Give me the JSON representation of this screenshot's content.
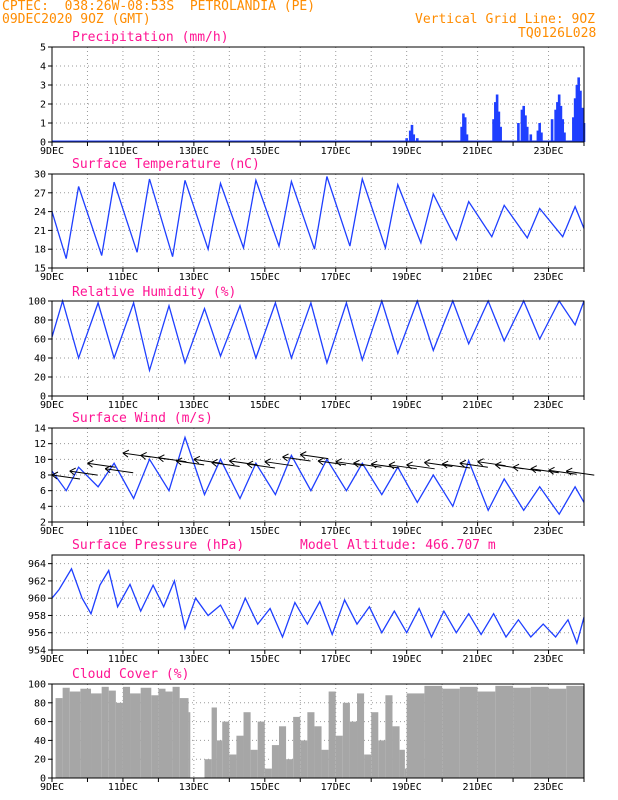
{
  "header": {
    "line1": "CPTEC:  038:26W-08:53S  PETROLANDIA (PE)",
    "line2": "09DEC2020 9OZ (GMT)",
    "right1": "Vertical Grid Line: 9OZ",
    "right2": "TQ0126L028"
  },
  "colors": {
    "header": "#ff8c00",
    "title": "#ff1493",
    "series": "#1f3fff",
    "cloud": "#a6a6a6",
    "grid": "#9a9a9a"
  },
  "x_labels": [
    "9DEC",
    "11DEC",
    "13DEC",
    "15DEC",
    "17DEC",
    "19DEC",
    "21DEC",
    "23DEC"
  ],
  "chart_data": [
    {
      "type": "bar",
      "title": "Precipitation (mm/h)",
      "x_labels": [
        "9DEC",
        "11DEC",
        "13DEC",
        "15DEC",
        "17DEC",
        "19DEC",
        "21DEC",
        "23DEC"
      ],
      "xlim": [
        9,
        24
      ],
      "ylim": [
        0,
        5
      ],
      "yticks": [
        0,
        1,
        2,
        3,
        4,
        5
      ],
      "x": [
        19.0,
        19.1,
        19.15,
        19.2,
        19.3,
        20.55,
        20.6,
        20.65,
        20.7,
        21.45,
        21.5,
        21.55,
        21.6,
        21.65,
        22.15,
        22.25,
        22.3,
        22.35,
        22.4,
        22.5,
        22.7,
        22.75,
        22.8,
        23.1,
        23.2,
        23.25,
        23.3,
        23.35,
        23.4,
        23.45,
        23.7,
        23.75,
        23.8,
        23.85,
        23.9,
        23.95,
        24.0
      ],
      "values": [
        0.2,
        0.6,
        0.9,
        0.4,
        0.2,
        0.8,
        1.5,
        1.3,
        0.4,
        1.2,
        2.1,
        2.5,
        1.6,
        0.8,
        1.0,
        1.7,
        1.9,
        1.4,
        0.8,
        0.4,
        0.6,
        1.0,
        0.5,
        1.2,
        1.7,
        2.1,
        2.5,
        1.9,
        1.2,
        0.5,
        1.3,
        2.3,
        3.0,
        3.4,
        2.7,
        1.8,
        1.0
      ],
      "grid": true
    },
    {
      "type": "line",
      "title": "Surface Temperature (nC)",
      "x_labels": [
        "9DEC",
        "11DEC",
        "13DEC",
        "15DEC",
        "17DEC",
        "19DEC",
        "21DEC",
        "23DEC"
      ],
      "xlim": [
        9,
        24
      ],
      "ylim": [
        15,
        30
      ],
      "yticks": [
        15,
        18,
        21,
        24,
        27,
        30
      ],
      "x": [
        9.0,
        9.4,
        9.75,
        10.4,
        10.75,
        11.4,
        11.75,
        12.4,
        12.75,
        13.4,
        13.75,
        14.4,
        14.75,
        15.4,
        15.75,
        16.4,
        16.75,
        17.4,
        17.75,
        18.4,
        18.75,
        19.4,
        19.75,
        20.4,
        20.75,
        21.4,
        21.75,
        22.4,
        22.75,
        23.4,
        23.75,
        24.0
      ],
      "values": [
        24.0,
        16.5,
        28.0,
        17.0,
        28.7,
        17.5,
        29.2,
        16.8,
        29.0,
        18.0,
        28.5,
        18.2,
        29.0,
        18.5,
        28.8,
        18.0,
        29.6,
        18.5,
        29.2,
        18.2,
        28.3,
        19.0,
        26.8,
        19.5,
        25.6,
        20.0,
        25.0,
        19.8,
        24.5,
        20.0,
        24.8,
        21.3
      ],
      "grid": true
    },
    {
      "type": "line",
      "title": "Relative Humidity (%)",
      "x_labels": [
        "9DEC",
        "11DEC",
        "13DEC",
        "15DEC",
        "17DEC",
        "19DEC",
        "21DEC",
        "23DEC"
      ],
      "xlim": [
        9,
        24
      ],
      "ylim": [
        0,
        100
      ],
      "yticks": [
        0,
        20,
        40,
        60,
        80,
        100
      ],
      "x": [
        9.0,
        9.3,
        9.75,
        10.3,
        10.75,
        11.3,
        11.75,
        12.3,
        12.75,
        13.3,
        13.75,
        14.3,
        14.75,
        15.3,
        15.75,
        16.3,
        16.75,
        17.3,
        17.75,
        18.3,
        18.75,
        19.3,
        19.75,
        20.3,
        20.75,
        21.3,
        21.75,
        22.3,
        22.75,
        23.3,
        23.75,
        24.0
      ],
      "values": [
        62,
        100,
        40,
        98,
        40,
        98,
        27,
        95,
        35,
        92,
        42,
        95,
        40,
        98,
        40,
        98,
        35,
        98,
        38,
        100,
        45,
        100,
        48,
        100,
        55,
        100,
        58,
        100,
        60,
        100,
        75,
        100
      ],
      "grid": true
    },
    {
      "type": "line",
      "title": "Surface Wind (m/s)",
      "x_labels": [
        "9DEC",
        "11DEC",
        "13DEC",
        "15DEC",
        "17DEC",
        "19DEC",
        "21DEC",
        "23DEC"
      ],
      "xlim": [
        9,
        24
      ],
      "ylim": [
        2,
        14
      ],
      "yticks": [
        2,
        4,
        6,
        8,
        10,
        12,
        14
      ],
      "x": [
        9.0,
        9.4,
        9.75,
        10.3,
        10.75,
        11.3,
        11.75,
        12.3,
        12.75,
        13.3,
        13.75,
        14.3,
        14.75,
        15.3,
        15.75,
        16.3,
        16.75,
        17.3,
        17.75,
        18.3,
        18.75,
        19.3,
        19.75,
        20.3,
        20.75,
        21.3,
        21.75,
        22.3,
        22.75,
        23.3,
        23.75,
        24.0
      ],
      "values": [
        8.5,
        6.0,
        9.0,
        6.5,
        9.5,
        5.0,
        10.0,
        6.0,
        12.8,
        5.5,
        10.0,
        5.0,
        9.5,
        5.5,
        10.5,
        6.0,
        10.0,
        6.0,
        9.5,
        5.5,
        9.0,
        4.5,
        8.0,
        4.0,
        9.8,
        3.5,
        7.5,
        3.5,
        6.5,
        3.0,
        6.5,
        4.5
      ],
      "wind_barbs": {
        "x": [
          9.0,
          9.5,
          10.0,
          10.5,
          11.0,
          11.5,
          12.0,
          12.5,
          13.0,
          13.5,
          14.0,
          14.5,
          15.0,
          15.5,
          16.0,
          16.5,
          17.0,
          17.5,
          18.0,
          18.5,
          19.0,
          19.5,
          20.0,
          20.5,
          21.0,
          21.5,
          22.0,
          22.5,
          23.0,
          23.5
        ],
        "values": [
          8.0,
          8.5,
          9.5,
          8.8,
          10.8,
          10.5,
          10.2,
          9.8,
          10.0,
          9.6,
          9.8,
          9.4,
          9.7,
          10.3,
          10.6,
          9.8,
          9.7,
          9.5,
          9.4,
          9.3,
          9.3,
          9.6,
          9.4,
          9.5,
          9.7,
          9.3,
          9.0,
          8.8,
          8.6,
          8.5
        ]
      },
      "grid": true
    },
    {
      "type": "line",
      "title": "Surface Pressure (hPa)",
      "annotation": "Model Altitude: 466.707 m",
      "x_labels": [
        "9DEC",
        "11DEC",
        "13DEC",
        "15DEC",
        "17DEC",
        "19DEC",
        "21DEC",
        "23DEC"
      ],
      "xlim": [
        9,
        24
      ],
      "ylim": [
        954,
        965
      ],
      "yticks": [
        954,
        956,
        958,
        960,
        962,
        964
      ],
      "x": [
        9.0,
        9.2,
        9.55,
        9.85,
        10.1,
        10.35,
        10.6,
        10.85,
        11.2,
        11.5,
        11.85,
        12.15,
        12.45,
        12.75,
        13.05,
        13.4,
        13.75,
        14.1,
        14.45,
        14.8,
        15.15,
        15.5,
        15.85,
        16.2,
        16.55,
        16.9,
        17.25,
        17.6,
        17.95,
        18.3,
        18.65,
        19.0,
        19.35,
        19.7,
        20.05,
        20.4,
        20.75,
        21.1,
        21.45,
        21.8,
        22.15,
        22.5,
        22.85,
        23.2,
        23.55,
        23.8,
        24.0
      ],
      "values": [
        960.0,
        961.0,
        963.4,
        960.0,
        958.2,
        961.5,
        963.2,
        959.0,
        961.6,
        958.5,
        961.5,
        959.0,
        962.0,
        956.5,
        960.0,
        958.0,
        959.2,
        956.5,
        960.0,
        957.0,
        958.8,
        955.5,
        959.5,
        957.0,
        959.6,
        955.8,
        959.8,
        957.0,
        959.0,
        956.0,
        958.5,
        956.0,
        958.8,
        955.5,
        958.5,
        956.0,
        958.2,
        955.8,
        958.2,
        955.5,
        957.5,
        955.5,
        957.0,
        955.5,
        957.5,
        954.8,
        957.8
      ],
      "grid": true
    },
    {
      "type": "area",
      "title": "Cloud Cover (%)",
      "x_labels": [
        "9DEC",
        "11DEC",
        "13DEC",
        "15DEC",
        "17DEC",
        "19DEC",
        "21DEC",
        "23DEC"
      ],
      "xlim": [
        9,
        24
      ],
      "ylim": [
        0,
        100
      ],
      "yticks": [
        0,
        20,
        40,
        60,
        80,
        100
      ],
      "x": [
        9.0,
        9.1,
        9.3,
        9.5,
        9.8,
        10.1,
        10.4,
        10.6,
        10.8,
        11.0,
        11.2,
        11.5,
        11.8,
        12.0,
        12.2,
        12.4,
        12.6,
        12.85,
        12.9,
        13.15,
        13.3,
        13.5,
        13.65,
        13.8,
        14.0,
        14.2,
        14.4,
        14.6,
        14.8,
        15.0,
        15.2,
        15.4,
        15.6,
        15.8,
        16.0,
        16.2,
        16.4,
        16.6,
        16.8,
        17.0,
        17.2,
        17.4,
        17.6,
        17.8,
        18.0,
        18.2,
        18.4,
        18.6,
        18.8,
        18.95,
        19.0,
        19.5,
        20.0,
        20.5,
        21.0,
        21.5,
        22.0,
        22.5,
        23.0,
        23.5,
        24.0
      ],
      "values": [
        0,
        85,
        96,
        92,
        95,
        90,
        97,
        93,
        80,
        97,
        90,
        96,
        88,
        95,
        92,
        97,
        85,
        70,
        0,
        0,
        20,
        75,
        40,
        60,
        25,
        45,
        70,
        30,
        60,
        10,
        35,
        55,
        20,
        65,
        40,
        70,
        55,
        30,
        92,
        45,
        80,
        60,
        90,
        25,
        70,
        40,
        88,
        55,
        30,
        10,
        90,
        98,
        95,
        97,
        92,
        98,
        96,
        97,
        95,
        98,
        97
      ],
      "grid": true
    }
  ]
}
